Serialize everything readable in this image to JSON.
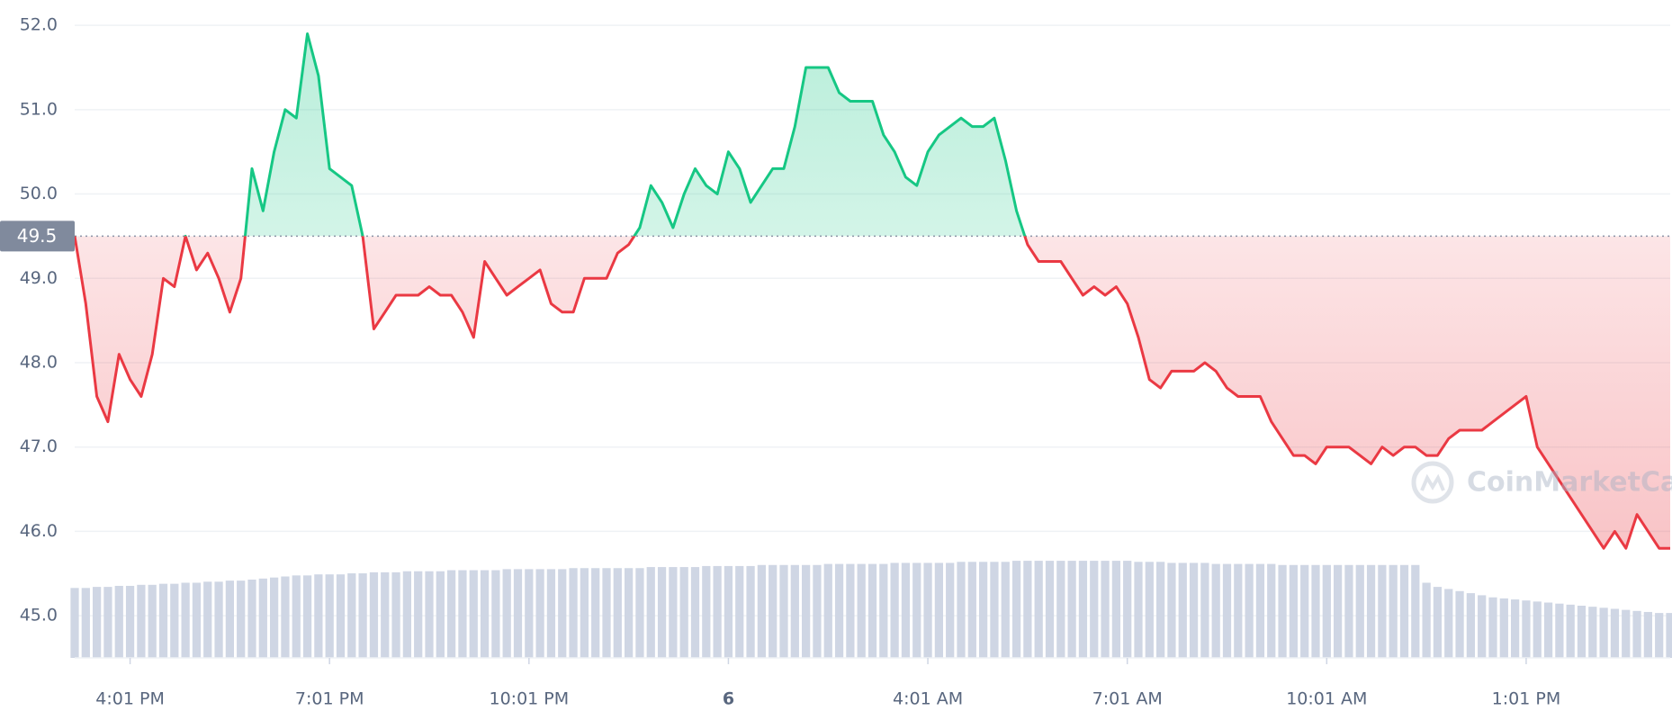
{
  "chart_data": {
    "type": "line",
    "watermark": "CoinMarketCap",
    "baseline": 49.5,
    "up_color": "#16c784",
    "down_color": "#ea3943",
    "volume_color": "#cfd6e4",
    "grid": true,
    "ylim": [
      44.5,
      52.3
    ],
    "yticks": [
      {
        "value": 45,
        "label": "45.0"
      },
      {
        "value": 46,
        "label": "46.0"
      },
      {
        "value": 47,
        "label": "47.0"
      },
      {
        "value": 48,
        "label": "48.0"
      },
      {
        "value": 49,
        "label": "49.0"
      },
      {
        "value": 50,
        "label": "50.0"
      },
      {
        "value": 51,
        "label": "51.0"
      },
      {
        "value": 52,
        "label": "52.0"
      }
    ],
    "y2lim": [
      0,
      100
    ],
    "categories": [
      null,
      null,
      null,
      null,
      null,
      "4:01 PM",
      null,
      null,
      null,
      null,
      null,
      null,
      null,
      null,
      null,
      null,
      null,
      null,
      null,
      null,
      null,
      null,
      null,
      "7:01 PM",
      null,
      null,
      null,
      null,
      null,
      null,
      null,
      null,
      null,
      null,
      null,
      null,
      null,
      null,
      null,
      null,
      null,
      "10:01 PM",
      null,
      null,
      null,
      null,
      null,
      null,
      null,
      null,
      null,
      null,
      null,
      null,
      null,
      null,
      null,
      null,
      null,
      "6",
      null,
      null,
      null,
      null,
      null,
      null,
      null,
      null,
      null,
      null,
      null,
      null,
      null,
      null,
      null,
      null,
      null,
      "4:01 AM",
      null,
      null,
      null,
      null,
      null,
      null,
      null,
      null,
      null,
      null,
      null,
      null,
      null,
      null,
      null,
      null,
      null,
      "7:01 AM",
      null,
      null,
      null,
      null,
      null,
      null,
      null,
      null,
      null,
      null,
      null,
      null,
      null,
      null,
      null,
      null,
      null,
      "10:01 AM",
      null,
      null,
      null,
      null,
      null,
      null,
      null,
      null,
      null,
      null,
      null,
      null,
      null,
      null,
      null,
      null,
      null,
      "1:01 PM",
      null,
      null,
      null,
      null,
      null,
      null,
      null,
      null,
      null,
      null,
      null,
      null,
      null
    ],
    "series": [
      {
        "name": "Price",
        "values": [
          49.5,
          48.7,
          47.6,
          47.3,
          48.1,
          47.8,
          47.6,
          48.1,
          49.0,
          48.9,
          49.5,
          49.1,
          49.3,
          49.0,
          48.6,
          49.0,
          50.3,
          49.8,
          50.5,
          51.0,
          50.9,
          51.9,
          51.4,
          50.3,
          50.2,
          50.1,
          49.5,
          48.4,
          48.6,
          48.8,
          48.8,
          48.8,
          48.9,
          48.8,
          48.8,
          48.6,
          48.3,
          49.2,
          49.0,
          48.8,
          48.9,
          49.0,
          49.1,
          48.7,
          48.6,
          48.6,
          49.0,
          49.0,
          49.0,
          49.3,
          49.4,
          49.6,
          50.1,
          49.9,
          49.6,
          50.0,
          50.3,
          50.1,
          50.0,
          50.5,
          50.3,
          49.9,
          50.1,
          50.3,
          50.3,
          50.8,
          51.5,
          51.5,
          51.5,
          51.2,
          51.1,
          51.1,
          51.1,
          50.7,
          50.5,
          50.2,
          50.1,
          50.5,
          50.7,
          50.8,
          50.9,
          50.8,
          50.8,
          50.9,
          50.4,
          49.8,
          49.4,
          49.2,
          49.2,
          49.2,
          49.0,
          48.8,
          48.9,
          48.8,
          48.9,
          48.7,
          48.3,
          47.8,
          47.7,
          47.9,
          47.9,
          47.9,
          48.0,
          47.9,
          47.7,
          47.6,
          47.6,
          47.6,
          47.3,
          47.1,
          46.9,
          46.9,
          46.8,
          47.0,
          47.0,
          47.0,
          46.9,
          46.8,
          47.0,
          46.9,
          47.0,
          47.0,
          46.9,
          46.9,
          47.1,
          47.2,
          47.2,
          47.2,
          47.3,
          47.4,
          47.5,
          47.6,
          47.0,
          46.8,
          46.6,
          46.4,
          46.2,
          46.0,
          45.8,
          46.0,
          45.8,
          46.2,
          46.0,
          45.8,
          45.8
        ]
      },
      {
        "name": "Volume",
        "axis": "y2",
        "values": [
          67,
          67,
          68,
          68,
          69,
          69,
          70,
          70,
          71,
          71,
          72,
          72,
          73,
          73,
          74,
          74,
          75,
          76,
          77,
          78,
          79,
          79,
          80,
          80,
          80,
          81,
          81,
          82,
          82,
          82,
          83,
          83,
          83,
          83,
          84,
          84,
          84,
          84,
          84,
          85,
          85,
          85,
          85,
          85,
          85,
          86,
          86,
          86,
          86,
          86,
          86,
          86,
          87,
          87,
          87,
          87,
          87,
          88,
          88,
          88,
          88,
          88,
          89,
          89,
          89,
          89,
          89,
          89,
          90,
          90,
          90,
          90,
          90,
          90,
          91,
          91,
          91,
          91,
          91,
          91,
          92,
          92,
          92,
          92,
          92,
          93,
          93,
          93,
          93,
          93,
          93,
          93,
          93,
          93,
          93,
          93,
          92,
          92,
          92,
          91,
          91,
          91,
          91,
          90,
          90,
          90,
          90,
          90,
          90,
          89,
          89,
          89,
          89,
          89,
          89,
          89,
          89,
          89,
          89,
          89,
          89,
          89,
          72,
          68,
          66,
          64,
          62,
          60,
          58,
          57,
          56,
          55,
          54,
          53,
          52,
          51,
          50,
          49,
          48,
          47,
          46,
          45,
          44,
          43,
          43
        ]
      }
    ]
  }
}
